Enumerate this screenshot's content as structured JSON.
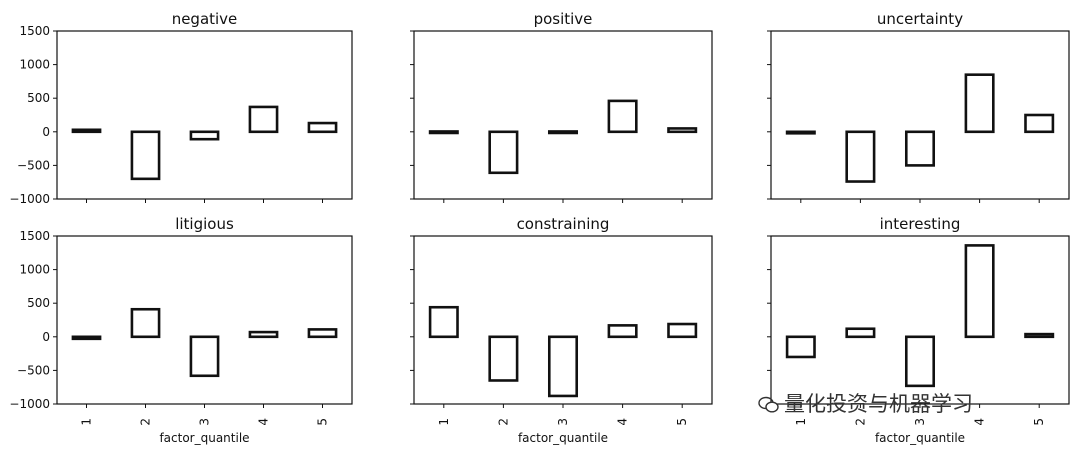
{
  "chart_data": [
    {
      "type": "bar",
      "title": "negative",
      "categories": [
        "1",
        "2",
        "3",
        "4",
        "5"
      ],
      "values": [
        30,
        -700,
        -110,
        370,
        130
      ],
      "ylim": [
        -1000,
        1500
      ],
      "yticks": [
        "1500",
        "1000",
        "500",
        "0",
        "−500",
        "−1000"
      ],
      "xlabel": ""
    },
    {
      "type": "bar",
      "title": "positive",
      "categories": [
        "1",
        "2",
        "3",
        "4",
        "5"
      ],
      "values": [
        5,
        -610,
        5,
        460,
        50
      ],
      "ylim": [
        -1000,
        1500
      ],
      "xlabel": ""
    },
    {
      "type": "bar",
      "title": "uncertainty",
      "categories": [
        "1",
        "2",
        "3",
        "4",
        "5"
      ],
      "values": [
        -10,
        -740,
        -500,
        850,
        250
      ],
      "ylim": [
        -1000,
        1500
      ],
      "xlabel": ""
    },
    {
      "type": "bar",
      "title": "litigious",
      "categories": [
        "1",
        "2",
        "3",
        "4",
        "5"
      ],
      "values": [
        -30,
        410,
        -580,
        70,
        110
      ],
      "ylim": [
        -1000,
        1500
      ],
      "yticks": [
        "1500",
        "1000",
        "500",
        "0",
        "−500",
        "−1000"
      ],
      "xlabel": "factor_quantile"
    },
    {
      "type": "bar",
      "title": "constraining",
      "categories": [
        "1",
        "2",
        "3",
        "4",
        "5"
      ],
      "values": [
        440,
        -650,
        -880,
        170,
        190
      ],
      "ylim": [
        -1000,
        1500
      ],
      "xlabel": "factor_quantile"
    },
    {
      "type": "bar",
      "title": "interesting",
      "categories": [
        "1",
        "2",
        "3",
        "4",
        "5"
      ],
      "values": [
        -300,
        120,
        -730,
        1360,
        40
      ],
      "ylim": [
        -1000,
        1500
      ],
      "xlabel": "factor_quantile"
    }
  ],
  "watermark": {
    "text": "量化投资与机器学习",
    "icon": "wechat-icon"
  }
}
